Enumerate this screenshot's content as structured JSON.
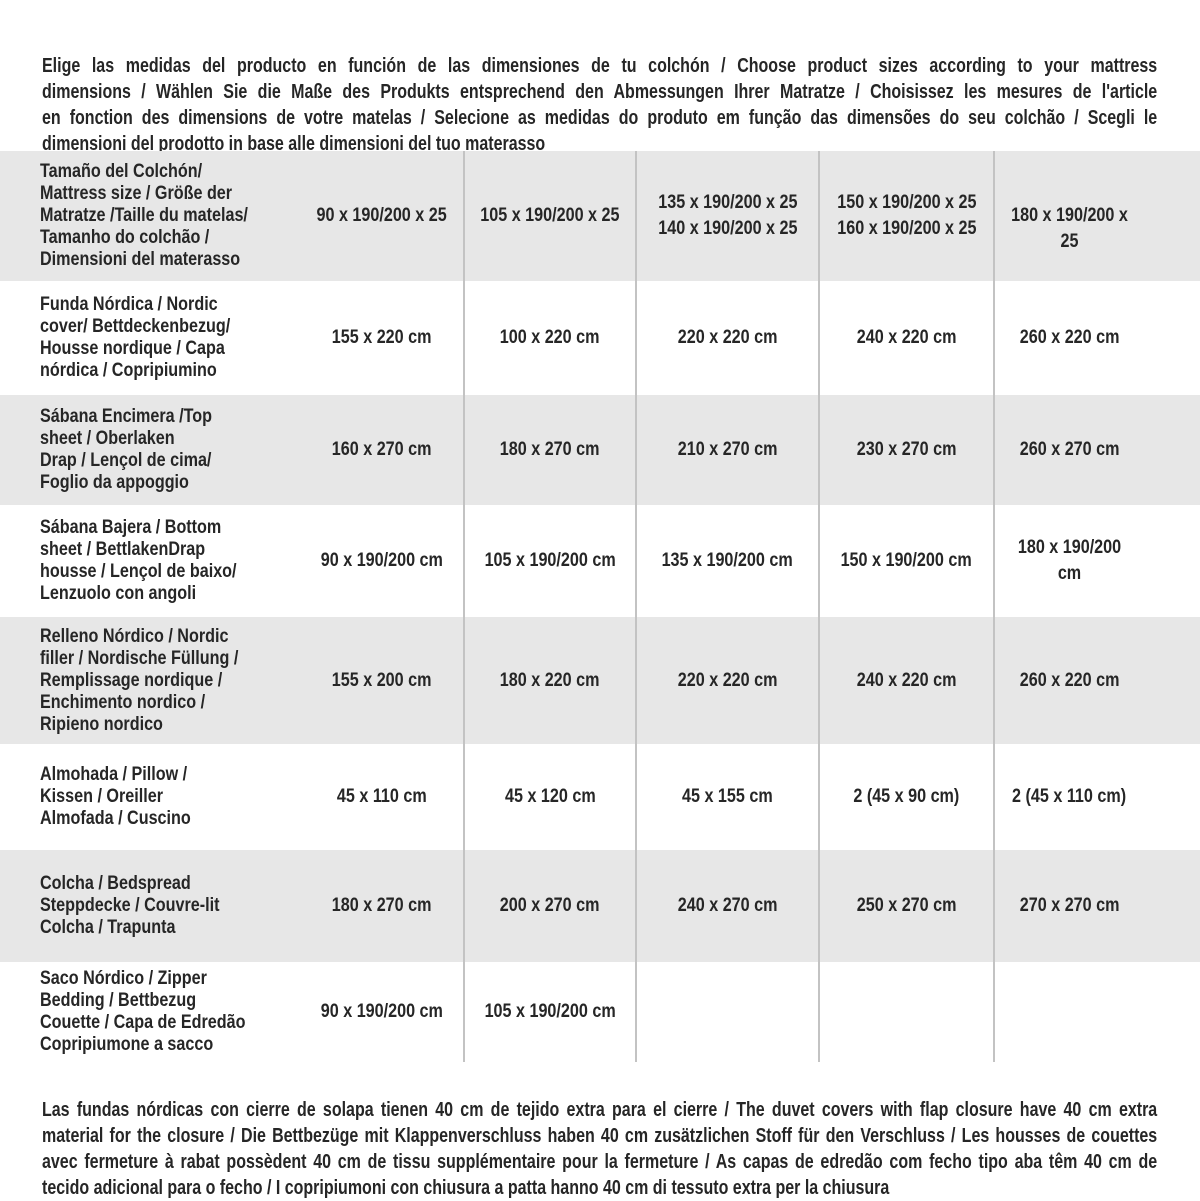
{
  "intro": {
    "lines": [
      "Elige las medidas del producto en función de las dimensiones de tu colchón / Choose product sizes according to your mattress",
      "dimensions / Wählen Sie die Maße des Produkts entsprechend den Abmessungen Ihrer Matratze / Choisissez les mesures de l'article",
      "en fonction des dimensions de votre matelas / Selecione as medidas do produto em função das dimensões do seu colchão / Scegli le",
      "dimensioni del prodotto in base alle dimensioni del tuo materasso"
    ]
  },
  "table": {
    "rows": [
      {
        "label": "Tamaño del Colchón/\nMattress size / Größe der\nMatratze /Taille du matelas/\nTamanho do colchão /\nDimensioni del materasso",
        "values": [
          "90 x 190/200 x 25",
          "105 x 190/200 x 25",
          "135 x 190/200 x 25\n140 x 190/200 x 25",
          "150 x 190/200 x 25\n160 x 190/200 x 25",
          "180 x 190/200 x 25"
        ]
      },
      {
        "label": "Funda Nórdica /  Nordic\ncover/ Bettdeckenbezug/\nHousse nordique  / Capa\nnórdica / Copripiumino",
        "values": [
          "155 x 220 cm",
          "100 x 220 cm",
          "220 x 220 cm",
          "240 x 220 cm",
          "260 x 220 cm"
        ]
      },
      {
        "label": "Sábana Encimera /Top\nsheet / Oberlaken\nDrap / Lençol de cima/\nFoglio da appoggio",
        "values": [
          "160 x 270 cm",
          "180 x 270 cm",
          "210 x 270 cm",
          "230 x 270 cm",
          "260 x 270 cm"
        ]
      },
      {
        "label": "Sábana Bajera / Bottom\nsheet / BettlakenDrap\nhousse / Lençol de baixo/\nLenzuolo con angoli",
        "values": [
          "90 x 190/200 cm",
          "105 x 190/200 cm",
          "135 x 190/200 cm",
          "150 x 190/200 cm",
          "180 x 190/200 cm"
        ]
      },
      {
        "label": "Relleno Nórdico / Nordic\nfiller / Nordische Füllung /\nRemplissage nordique /\nEnchimento nordico /\nRipieno nordico",
        "values": [
          "155 x 200 cm",
          "180 x 220 cm",
          "220 x 220 cm",
          "240 x 220 cm",
          "260 x 220 cm"
        ]
      },
      {
        "label": "Almohada  / Pillow /\nKissen / Oreiller\nAlmofada / Cuscino",
        "values": [
          "45 x 110 cm",
          "45 x 120 cm",
          "45 x 155 cm",
          "2 (45 x 90 cm)",
          "2 (45 x 110 cm)"
        ]
      },
      {
        "label": "Colcha / Bedspread\nSteppdecke / Couvre-lit\nColcha / Trapunta",
        "values": [
          "180 x 270 cm",
          "200 x 270 cm",
          "240 x 270 cm",
          "250 x 270 cm",
          "270 x 270 cm"
        ]
      },
      {
        "label": "Saco Nórdico / Zipper\nBedding / Bettbezug\nCouette  / Capa de Edredão\nCopripiumone a sacco",
        "values": [
          "90 x 190/200 cm",
          "105 x 190/200 cm",
          "",
          "",
          ""
        ]
      }
    ]
  },
  "footer": {
    "lines": [
      "Las fundas nórdicas con cierre de solapa tienen 40 cm de tejido extra para el cierre  / The duvet covers with flap closure have 40 cm extra",
      "material for the closure / Die Bettbezüge mit Klappenverschluss haben 40 cm zusätzlichen Stoff für den Verschluss / Les housses de couettes",
      "avec fermeture à rabat possèdent 40 cm de tissu supplémentaire pour la fermeture / As capas de edredão com fecho tipo aba têm 40 cm de",
      "tecido adicional para o fecho / I copripiumoni con chiusura a patta hanno 40 cm di tessuto extra per la chiusura"
    ]
  },
  "colors": {
    "row_alt_bg": "#e7e7e7",
    "row_bg": "#ffffff",
    "divider": "#c3c3c3",
    "text": "#262626"
  }
}
